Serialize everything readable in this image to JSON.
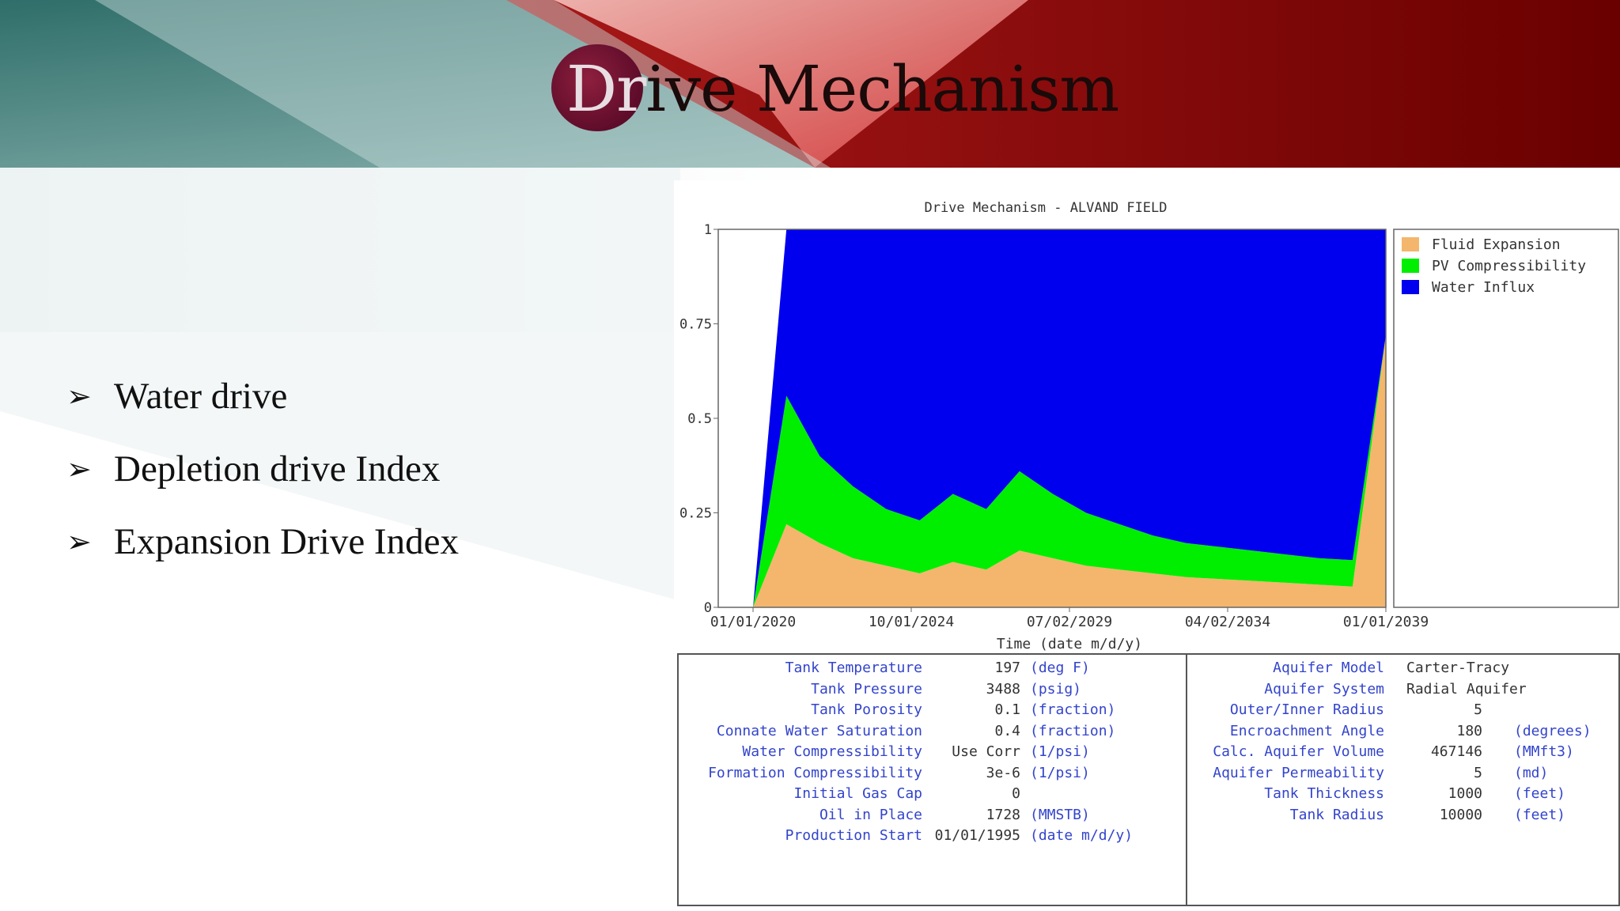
{
  "slide": {
    "title_lead": "Dr",
    "title_rest": "ive Mechanism",
    "bullets": [
      "Water drive",
      "Depletion drive Index",
      "Expansion Drive Index"
    ],
    "bullet_glyph": "➢",
    "colors": {
      "dark_red": "#7a0000",
      "teal": "#3d7878",
      "circle": "#6a1030"
    }
  },
  "chart_data": {
    "type": "area",
    "title": "Drive Mechanism - ALVAND FIELD",
    "xlabel": "Time (date m/d/y)",
    "ylabel": "",
    "ylim": [
      0,
      1
    ],
    "xlim": [
      "01/01/2020",
      "01/01/2039"
    ],
    "x_ticks": [
      "01/01/2020",
      "10/01/2024",
      "07/02/2029",
      "04/02/2034",
      "01/01/2039"
    ],
    "y_ticks": [
      "0",
      "0.25",
      "0.5",
      "0.75",
      "1"
    ],
    "stacked": true,
    "legend_position": "right",
    "x": [
      "2020-01-01",
      "2021-01-01",
      "2022-01-01",
      "2023-01-01",
      "2024-01-01",
      "2025-01-01",
      "2026-01-01",
      "2027-01-01",
      "2028-01-01",
      "2029-01-01",
      "2030-01-01",
      "2031-01-01",
      "2032-01-01",
      "2033-01-01",
      "2034-01-01",
      "2035-01-01",
      "2036-01-01",
      "2037-01-01",
      "2038-01-01",
      "2039-01-01"
    ],
    "series": [
      {
        "name": "Fluid Expansion",
        "color": "#f4b66c",
        "values": [
          0.0,
          0.22,
          0.17,
          0.13,
          0.11,
          0.09,
          0.12,
          0.1,
          0.15,
          0.13,
          0.11,
          0.1,
          0.09,
          0.08,
          0.075,
          0.07,
          0.065,
          0.06,
          0.055,
          0.72
        ]
      },
      {
        "name": "PV Compressibility",
        "color": "#00ee00",
        "values": [
          0.0,
          0.34,
          0.23,
          0.19,
          0.15,
          0.14,
          0.18,
          0.16,
          0.21,
          0.17,
          0.14,
          0.12,
          0.1,
          0.09,
          0.085,
          0.08,
          0.075,
          0.07,
          0.07,
          0.0
        ]
      },
      {
        "name": "Water Influx",
        "color": "#0000ee",
        "values": [
          0.0,
          0.44,
          0.6,
          0.68,
          0.74,
          0.77,
          0.7,
          0.74,
          0.64,
          0.7,
          0.75,
          0.78,
          0.81,
          0.83,
          0.84,
          0.85,
          0.86,
          0.87,
          0.875,
          0.28
        ]
      }
    ]
  },
  "parameters": {
    "left": [
      {
        "label": "Tank Temperature",
        "value": "197",
        "unit": "(deg F)"
      },
      {
        "label": "Tank Pressure",
        "value": "3488",
        "unit": "(psig)"
      },
      {
        "label": "Tank Porosity",
        "value": "0.1",
        "unit": "(fraction)"
      },
      {
        "label": "Connate Water Saturation",
        "value": "0.4",
        "unit": "(fraction)"
      },
      {
        "label": "Water Compressibility",
        "value": "Use Corr",
        "unit": "(1/psi)"
      },
      {
        "label": "Formation Compressibility",
        "value": "3e-6",
        "unit": "(1/psi)"
      },
      {
        "label": "Initial Gas Cap",
        "value": "0",
        "unit": ""
      },
      {
        "label": "Oil in Place",
        "value": "1728",
        "unit": "(MMSTB)"
      },
      {
        "label": "Production Start",
        "value": "01/01/1995",
        "unit": "(date m/d/y)"
      }
    ],
    "right": [
      {
        "label": "Aquifer Model",
        "value": "Carter-Tracy",
        "unit": "",
        "align": "left"
      },
      {
        "label": "Aquifer System",
        "value": "Radial Aquifer",
        "unit": "",
        "align": "left"
      },
      {
        "label": "Outer/Inner Radius",
        "value": "5",
        "unit": ""
      },
      {
        "label": "Encroachment Angle",
        "value": "180",
        "unit": "(degrees)"
      },
      {
        "label": "Calc. Aquifer Volume",
        "value": "467146",
        "unit": "(MMft3)"
      },
      {
        "label": "Aquifer Permeability",
        "value": "5",
        "unit": "(md)"
      },
      {
        "label": "Tank Thickness",
        "value": "1000",
        "unit": "(feet)"
      },
      {
        "label": "Tank Radius",
        "value": "10000",
        "unit": "(feet)"
      }
    ]
  }
}
